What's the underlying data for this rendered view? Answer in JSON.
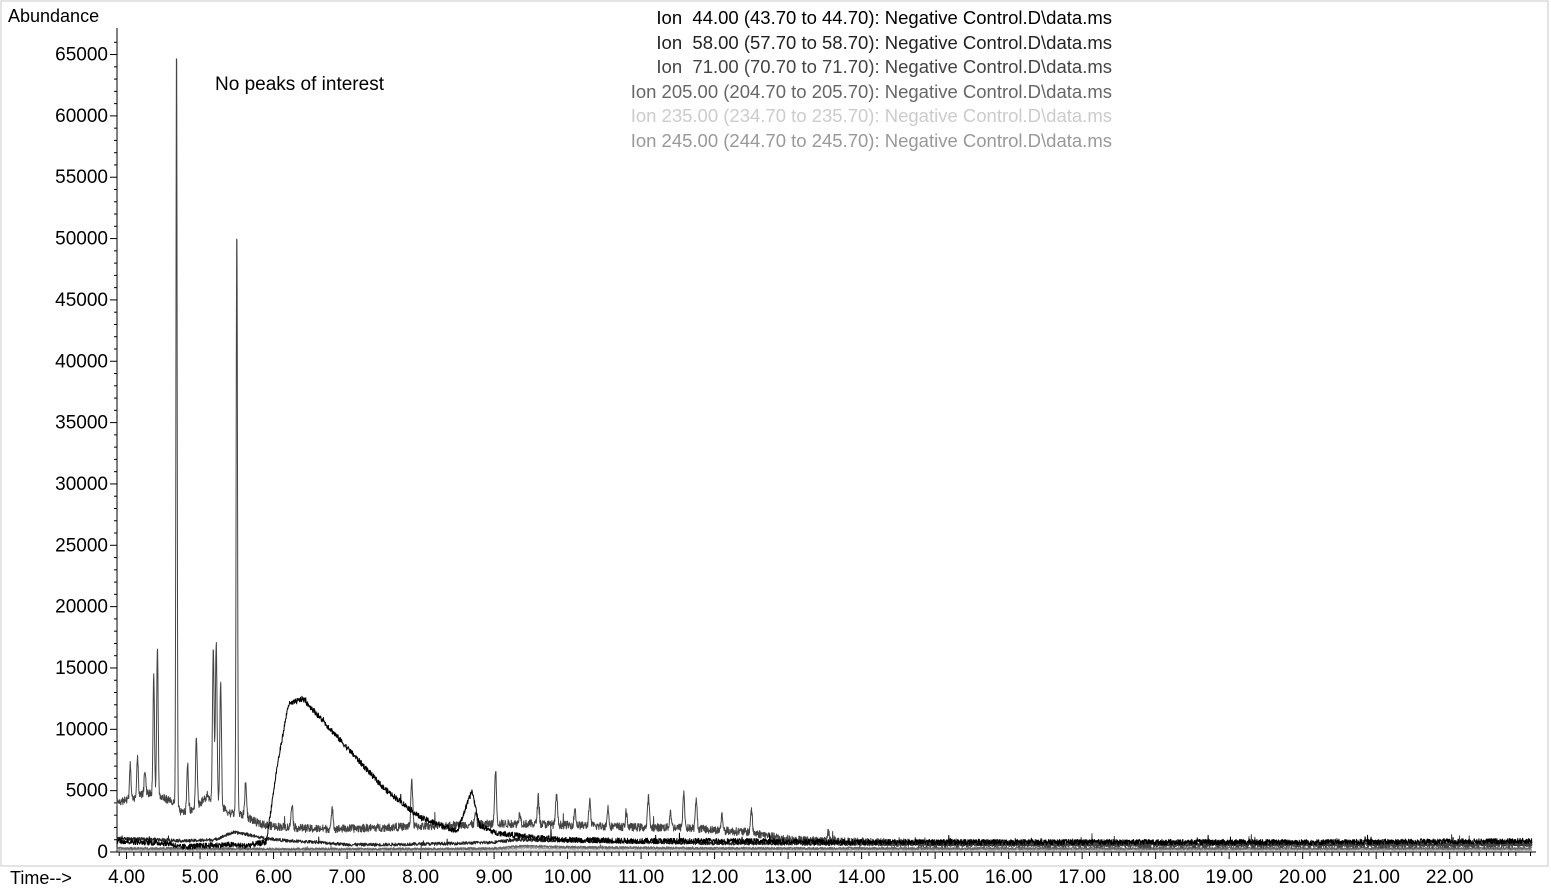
{
  "chart_data": {
    "type": "line",
    "ylabel": "Abundance",
    "xlabel": "Time-->",
    "annotation": "No peaks of interest",
    "xlim": [
      3.87,
      23.12
    ],
    "ylim": [
      0,
      67000
    ],
    "x_ticks": [
      "4.00",
      "5.00",
      "6.00",
      "7.00",
      "8.00",
      "9.00",
      "10.00",
      "11.00",
      "12.00",
      "13.00",
      "14.00",
      "15.00",
      "16.00",
      "17.00",
      "18.00",
      "19.00",
      "20.00",
      "21.00",
      "22.00"
    ],
    "y_ticks": [
      "0",
      "5000",
      "10000",
      "15000",
      "20000",
      "25000",
      "30000",
      "35000",
      "40000",
      "45000",
      "50000",
      "55000",
      "60000",
      "65000"
    ],
    "grid": false,
    "legend_position": "top-center",
    "series": [
      {
        "name": "Ion  44.00 (43.70 to 44.70): Negative Control.D\\data.ms",
        "color": "#000000",
        "x": [
          3.87,
          4.2,
          4.6,
          4.7,
          5.0,
          5.4,
          5.6,
          5.9,
          6.05,
          6.2,
          6.4,
          6.7,
          7.0,
          7.5,
          8.0,
          8.5,
          8.7,
          8.8,
          9.0,
          9.5,
          10.0,
          11.0,
          12.0,
          13.0,
          14.0,
          15.0,
          16.0,
          18.0,
          20.0,
          22.0,
          23.12
        ],
        "y": [
          900,
          800,
          700,
          400,
          500,
          600,
          500,
          800,
          7000,
          12000,
          12500,
          10500,
          8500,
          5200,
          2800,
          1700,
          5000,
          2200,
          1600,
          1200,
          1000,
          900,
          900,
          850,
          800,
          800,
          800,
          800,
          800,
          850,
          900
        ],
        "noise": 230
      },
      {
        "name": "Ion  58.00 (57.70 to 58.70): Negative Control.D\\data.ms",
        "color": "#222222",
        "x": [
          3.87,
          4.5,
          4.8,
          5.2,
          5.45,
          5.6,
          5.8,
          6.2,
          6.6,
          7.0,
          7.5,
          8.0,
          8.5,
          9.0,
          9.3,
          10.0,
          11.0,
          12.0,
          14.0,
          16.0,
          18.0,
          20.0,
          23.12
        ],
        "y": [
          1100,
          1000,
          900,
          1000,
          1600,
          1500,
          1200,
          900,
          800,
          600,
          600,
          650,
          700,
          800,
          1000,
          900,
          800,
          700,
          650,
          600,
          600,
          600,
          600
        ],
        "noise": 130
      },
      {
        "name": "Ion  71.00 (70.70 to 71.70): Negative Control.D\\data.ms",
        "color": "#444444",
        "x": [
          3.87,
          4.3,
          4.6,
          4.75,
          4.9,
          5.1,
          5.4,
          5.6,
          5.8,
          6.0,
          6.5,
          7.0,
          7.5,
          8.0,
          8.5,
          9.0,
          9.5,
          10.0,
          10.5,
          11.0,
          11.5,
          12.0,
          12.5,
          13.0,
          14.0,
          15.0,
          16.0,
          18.0,
          20.0,
          22.0,
          23.12
        ],
        "y": [
          4000,
          4800,
          4200,
          3200,
          3500,
          4500,
          3200,
          3000,
          2300,
          2100,
          1900,
          1900,
          2000,
          2100,
          2200,
          2300,
          2300,
          2200,
          2100,
          2000,
          2000,
          1800,
          1600,
          1000,
          800,
          700,
          700,
          650,
          650,
          650,
          650
        ],
        "noise": 330,
        "peaks": [
          {
            "x": 4.68,
            "y": 66500,
            "w": 0.008
          },
          {
            "x": 5.5,
            "y": 51300,
            "w": 0.009
          },
          {
            "x": 4.37,
            "y": 14500,
            "w": 0.01
          },
          {
            "x": 4.42,
            "y": 16800,
            "w": 0.01
          },
          {
            "x": 4.15,
            "y": 7800,
            "w": 0.01
          },
          {
            "x": 4.25,
            "y": 6800,
            "w": 0.01
          },
          {
            "x": 4.05,
            "y": 7200,
            "w": 0.01
          },
          {
            "x": 4.83,
            "y": 7300,
            "w": 0.01
          },
          {
            "x": 4.95,
            "y": 9500,
            "w": 0.011
          },
          {
            "x": 5.18,
            "y": 16800,
            "w": 0.011
          },
          {
            "x": 5.22,
            "y": 17200,
            "w": 0.011
          },
          {
            "x": 5.28,
            "y": 13800,
            "w": 0.011
          },
          {
            "x": 5.62,
            "y": 5600,
            "w": 0.012
          },
          {
            "x": 6.25,
            "y": 4000,
            "w": 0.012
          },
          {
            "x": 6.8,
            "y": 3500,
            "w": 0.012
          },
          {
            "x": 7.88,
            "y": 6000,
            "w": 0.012
          },
          {
            "x": 8.75,
            "y": 3200,
            "w": 0.012
          },
          {
            "x": 9.02,
            "y": 6800,
            "w": 0.012
          },
          {
            "x": 9.35,
            "y": 3200,
            "w": 0.012
          },
          {
            "x": 9.6,
            "y": 4500,
            "w": 0.012
          },
          {
            "x": 9.85,
            "y": 4800,
            "w": 0.012
          },
          {
            "x": 10.1,
            "y": 3500,
            "w": 0.012
          },
          {
            "x": 10.3,
            "y": 4200,
            "w": 0.012
          },
          {
            "x": 10.55,
            "y": 3600,
            "w": 0.012
          },
          {
            "x": 10.8,
            "y": 3200,
            "w": 0.012
          },
          {
            "x": 11.1,
            "y": 4500,
            "w": 0.012
          },
          {
            "x": 11.4,
            "y": 3300,
            "w": 0.012
          },
          {
            "x": 11.58,
            "y": 4800,
            "w": 0.012
          },
          {
            "x": 11.75,
            "y": 4200,
            "w": 0.012
          },
          {
            "x": 12.1,
            "y": 3000,
            "w": 0.012
          },
          {
            "x": 12.5,
            "y": 3500,
            "w": 0.012
          },
          {
            "x": 13.55,
            "y": 1700,
            "w": 0.012
          }
        ]
      },
      {
        "name": "Ion 205.00 (204.70 to 205.70): Negative Control.D\\data.ms",
        "color": "#666666",
        "x": [
          3.87,
          5.0,
          6.0,
          7.0,
          8.0,
          9.0,
          9.4,
          10.0,
          11.0,
          12.0,
          14.0,
          16.0,
          18.0,
          20.0,
          23.12
        ],
        "y": [
          300,
          300,
          250,
          250,
          250,
          300,
          500,
          400,
          350,
          300,
          300,
          300,
          300,
          300,
          300
        ],
        "noise": 90
      },
      {
        "name": "Ion 235.00 (234.70 to 235.70): Negative Control.D\\data.ms",
        "color": "#cccccc",
        "x": [
          3.87,
          6.0,
          9.0,
          12.0,
          16.0,
          20.0,
          23.12
        ],
        "y": [
          150,
          150,
          150,
          150,
          150,
          150,
          150
        ],
        "noise": 60
      },
      {
        "name": "Ion 245.00 (244.70 to 245.70): Negative Control.D\\data.ms",
        "color": "#999999",
        "x": [
          3.87,
          6.0,
          9.0,
          9.4,
          10.0,
          12.0,
          16.0,
          20.0,
          23.12
        ],
        "y": [
          200,
          200,
          200,
          350,
          300,
          250,
          200,
          200,
          200
        ],
        "noise": 70
      }
    ]
  }
}
